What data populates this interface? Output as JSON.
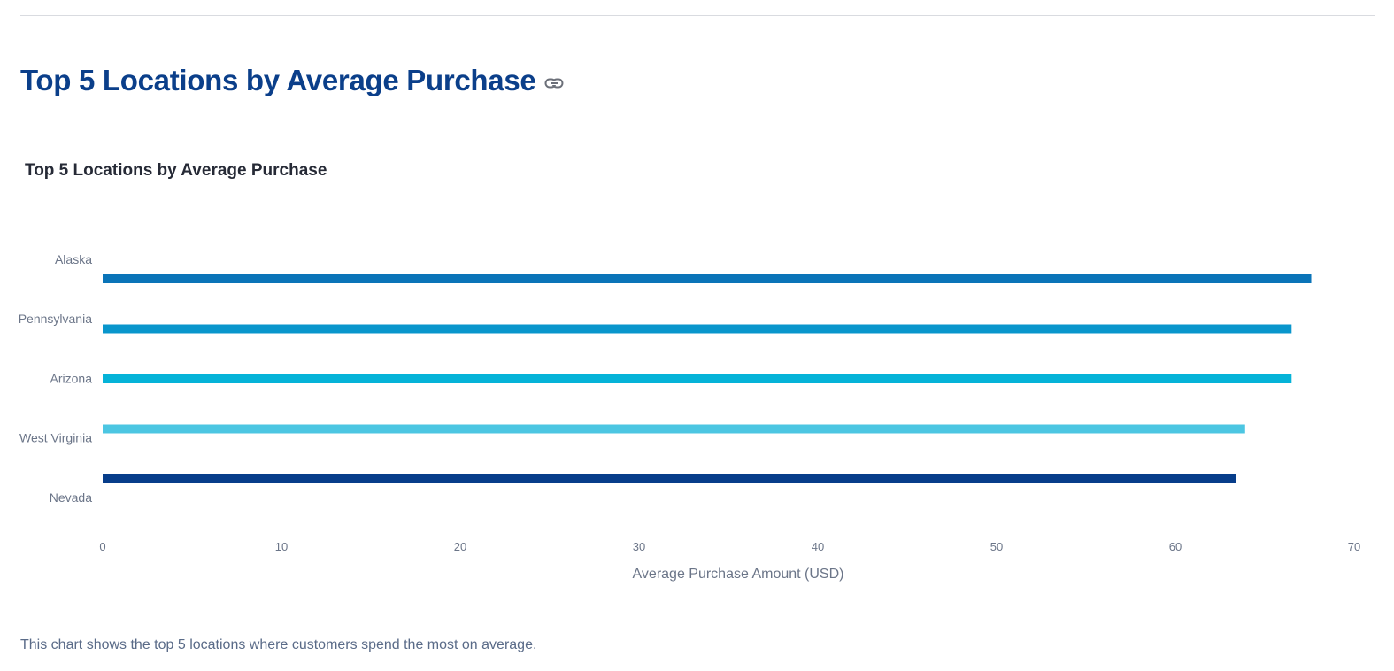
{
  "header": {
    "title": "Top 5 Locations by Average Purchase",
    "link_icon": "link-icon"
  },
  "chart_data": {
    "type": "bar",
    "orientation": "horizontal",
    "title": "Top 5 Locations by Average Purchase",
    "xlabel": "Average Purchase Amount (USD)",
    "ylabel": "",
    "categories": [
      "Alaska",
      "Pennsylvania",
      "Arizona",
      "West Virginia",
      "Nevada"
    ],
    "values": [
      67.6,
      66.5,
      66.5,
      63.9,
      63.4
    ],
    "colors": [
      "#0a74b8",
      "#0996cc",
      "#05b3d8",
      "#4cc6e2",
      "#073d8a"
    ],
    "xlim": [
      0,
      70
    ],
    "xticks": [
      0,
      10,
      20,
      30,
      40,
      50,
      60,
      70
    ],
    "grid": false,
    "legend": "none"
  },
  "caption": "This chart shows the top 5 locations where customers spend the most on average."
}
